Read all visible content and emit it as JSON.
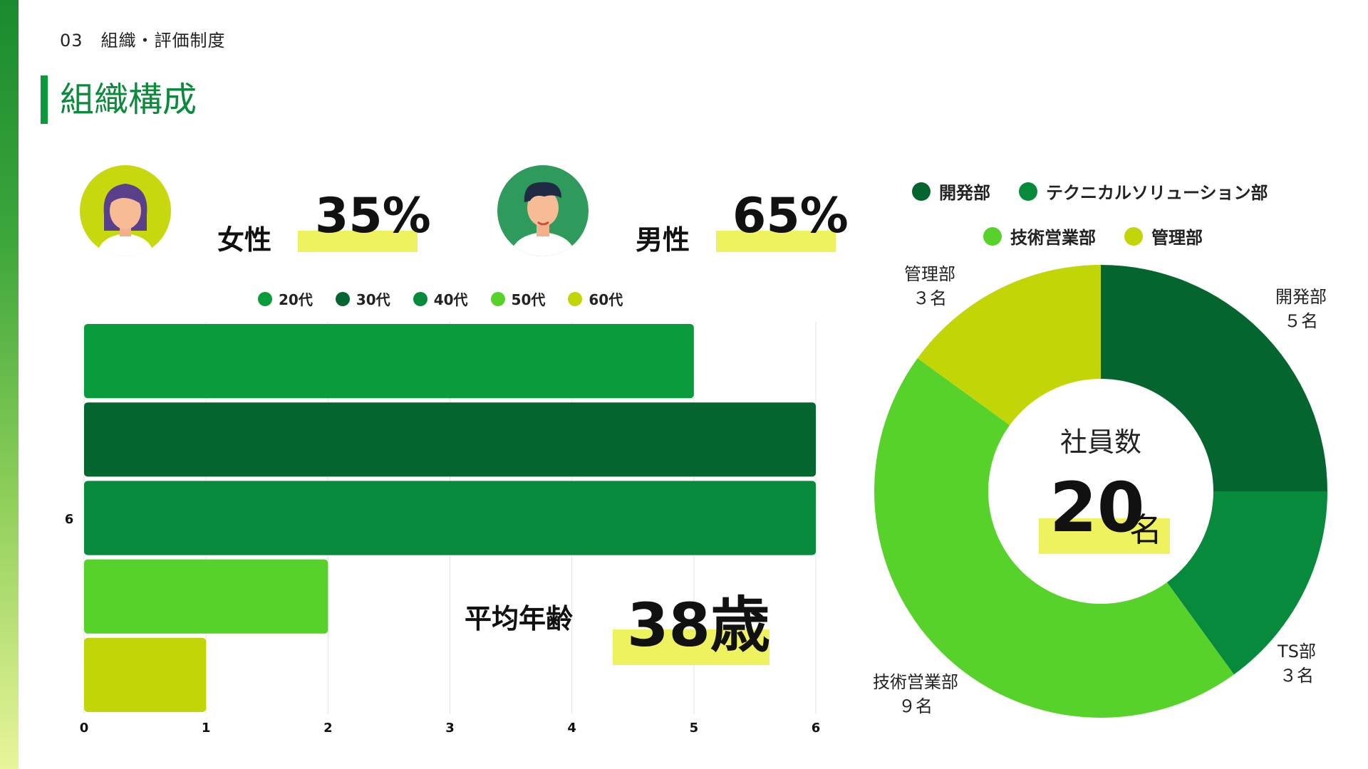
{
  "header": {
    "section": "03　組織・評価制度",
    "title": "組織構成"
  },
  "gender": {
    "female": {
      "label": "女性",
      "value": "35%",
      "percent": 35
    },
    "male": {
      "label": "男性",
      "value": "65%",
      "percent": 65
    }
  },
  "colors": {
    "accent": "#0a9a3c",
    "highlight": "#eef25e",
    "dark_green": "#05652f",
    "green": "#078a3b",
    "bright_green": "#099b3c",
    "lime": "#57d22a",
    "yellow_green": "#c2d607"
  },
  "chart_data": [
    {
      "type": "bar",
      "orientation": "horizontal",
      "categories": [
        "20代",
        "30代",
        "40代",
        "50代",
        "60代"
      ],
      "values": [
        5,
        6,
        6,
        2,
        1
      ],
      "series_colors": [
        "#099b3c",
        "#05652f",
        "#078a3b",
        "#57d22a",
        "#c2d607"
      ],
      "xlim": [
        0,
        6
      ],
      "xticks": [
        "0",
        "1",
        "2",
        "3",
        "4",
        "5",
        "6"
      ],
      "y_axis_label": "6",
      "legend": [
        "20代",
        "30代",
        "40代",
        "50代",
        "60代"
      ],
      "legend_position": "top",
      "grid": true
    },
    {
      "type": "pie",
      "donut": true,
      "categories": [
        "開発部",
        "TS部",
        "技術営業部",
        "管理部"
      ],
      "values": [
        5,
        3,
        9,
        3
      ],
      "colors": [
        "#05652f",
        "#078a3b",
        "#57d22a",
        "#c2d607"
      ],
      "legend": [
        "開発部",
        "テクニカルソリューション部",
        "技術営業部",
        "管理部"
      ],
      "legend_colors": [
        "#05652f",
        "#078a3b",
        "#57d22a",
        "#c2d607"
      ],
      "legend_position": "top",
      "slice_labels": [
        {
          "name": "開発部",
          "count": "５名"
        },
        {
          "name": "TS部",
          "count": "３名"
        },
        {
          "name": "技術営業部",
          "count": "９名"
        },
        {
          "name": "管理部",
          "count": "３名"
        }
      ],
      "center_title": "社員数",
      "center_value": "20",
      "center_unit": "名"
    }
  ],
  "average_age": {
    "label": "平均年齢",
    "value": "38歳"
  }
}
